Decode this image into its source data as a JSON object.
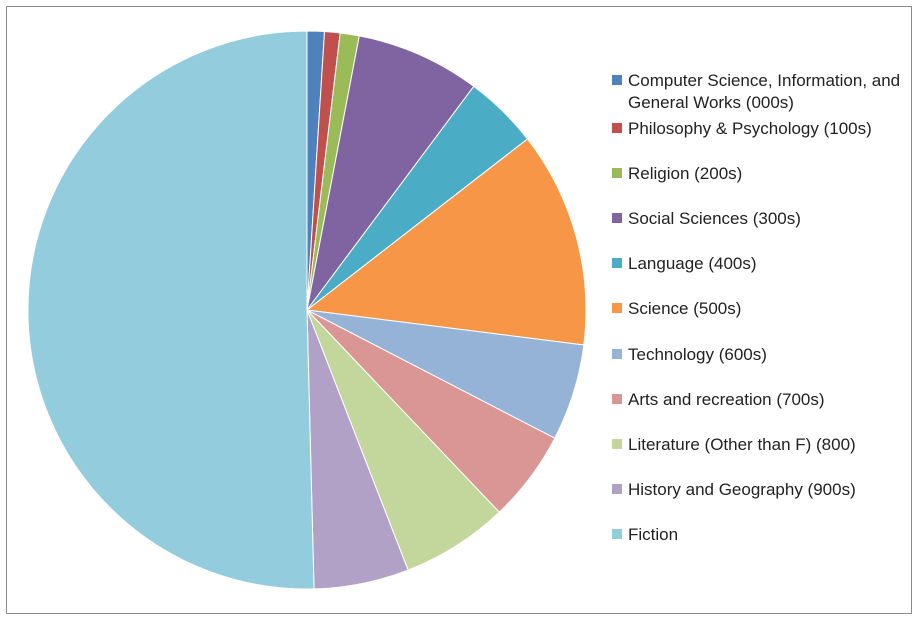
{
  "chart_data": {
    "type": "pie",
    "title": "",
    "legend_position": "right",
    "start_angle_deg": 0,
    "direction": "clockwise",
    "slices": [
      {
        "label": "Computer Science, Information, and General Works (000s)",
        "value": 1.0,
        "color": "#4F81BD"
      },
      {
        "label": "Philosophy & Psychology (100s)",
        "value": 0.9,
        "color": "#C0504D"
      },
      {
        "label": "Religion (200s)",
        "value": 1.1,
        "color": "#9BBB59"
      },
      {
        "label": "Social Sciences (300s)",
        "value": 7.2,
        "color": "#8064A2"
      },
      {
        "label": "Language (400s)",
        "value": 4.3,
        "color": "#4BACC6"
      },
      {
        "label": "Science (500s)",
        "value": 12.5,
        "color": "#F79646"
      },
      {
        "label": "Technology (600s)",
        "value": 5.6,
        "color": "#95B3D7"
      },
      {
        "label": "Arts and recreation (700s)",
        "value": 5.3,
        "color": "#D99694"
      },
      {
        "label": "Literature (Other than F) (800)",
        "value": 6.2,
        "color": "#C3D69B"
      },
      {
        "label": "History and Geography (900s)",
        "value": 5.5,
        "color": "#B2A1C7"
      },
      {
        "label": "Fiction",
        "value": 50.4,
        "color": "#93CDDD"
      }
    ]
  }
}
